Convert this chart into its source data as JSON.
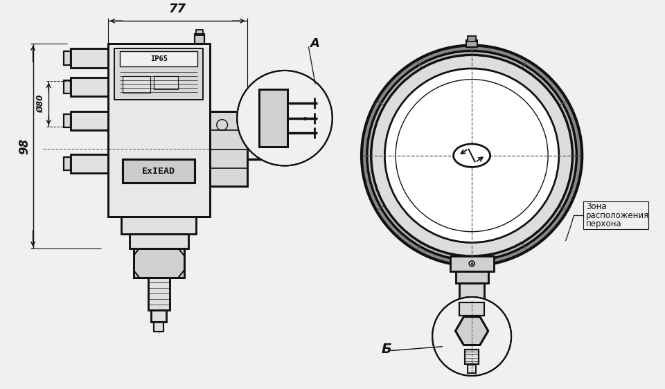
{
  "bg_color": "#f0f0f0",
  "line_color": "#111111",
  "dim_77": "77",
  "dim_98": "98",
  "dim_80": "Ø80",
  "label_A": "A",
  "label_B": "Б",
  "label_zone_1": "Зона",
  "label_zone_2": "расположения",
  "label_zone_3": "перхона",
  "ip65": "IP65",
  "ex_mark": "ExIEAD"
}
